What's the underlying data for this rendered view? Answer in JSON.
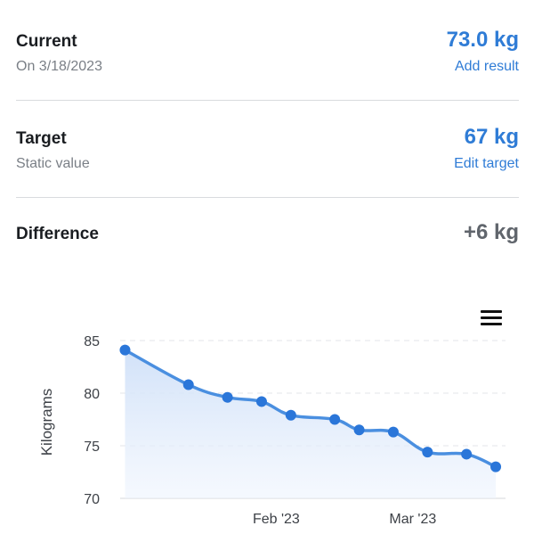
{
  "current": {
    "label": "Current",
    "date": "On 3/18/2023",
    "value": "73.0 kg",
    "action": "Add result"
  },
  "target": {
    "label": "Target",
    "subtitle": "Static value",
    "value": "67 kg",
    "action": "Edit target"
  },
  "difference": {
    "label": "Difference",
    "value": "+6 kg"
  },
  "colors": {
    "accent": "#2f7cd6",
    "line": "#4a8fe0",
    "point": "#2a76d9"
  },
  "chart_data": {
    "type": "area",
    "title": "",
    "xlabel": "",
    "ylabel": "Kilograms",
    "ylim": [
      70,
      85
    ],
    "yticks": [
      70,
      75,
      80,
      85
    ],
    "xlim": [
      "2022-12-31",
      "2023-03-20"
    ],
    "xticks": [
      {
        "label": "Feb '23",
        "date": "2023-02-01"
      },
      {
        "label": "Mar '23",
        "date": "2023-03-01"
      }
    ],
    "grid": true,
    "series": [
      {
        "x": [
          "2023-01-01",
          "2023-01-14",
          "2023-01-22",
          "2023-01-29",
          "2023-02-04",
          "2023-02-13",
          "2023-02-18",
          "2023-02-25",
          "2023-03-04",
          "2023-03-12",
          "2023-03-18"
        ],
        "y": [
          84.1,
          80.8,
          79.6,
          79.2,
          77.9,
          77.5,
          76.5,
          76.3,
          74.4,
          74.2,
          73.0
        ]
      }
    ]
  }
}
